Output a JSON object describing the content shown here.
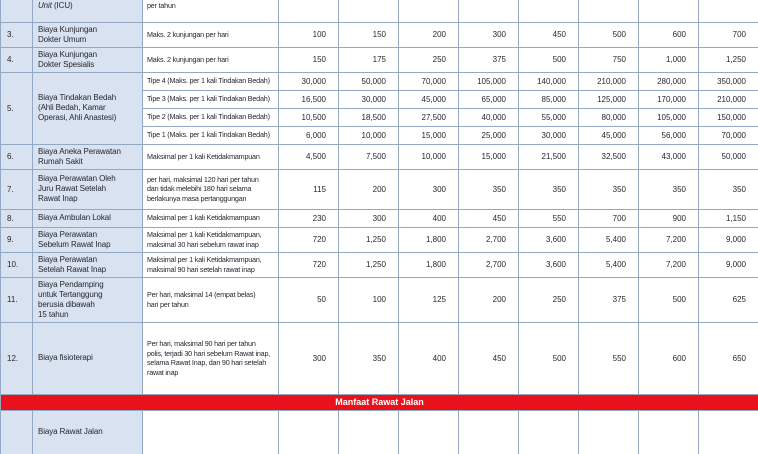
{
  "colors": {
    "row_label_bg": "#d8e2f0",
    "banner_bg": "#e8111c",
    "banner_text": "#ffffff",
    "border": "#94a9c1",
    "text": "#26272e"
  },
  "table": {
    "top_partial": {
      "name_italic": "Unit",
      "name_rest": "(ICU)",
      "desc": "per tahun"
    },
    "rows": [
      {
        "no": "3.",
        "name": "Biaya Kunjungan\nDokter Umum",
        "desc": "Maks. 2 kunjungan per hari",
        "values": [
          "100",
          "150",
          "200",
          "300",
          "450",
          "500",
          "600",
          "700"
        ]
      },
      {
        "no": "4.",
        "name": "Biaya Kunjungan\nDokter Spesialis",
        "desc": "Maks. 2 kunjungan per hari",
        "values": [
          "150",
          "175",
          "250",
          "375",
          "500",
          "750",
          "1,000",
          "1,250"
        ]
      },
      {
        "no": "5.",
        "name": "Biaya Tindakan Bedah\n(Ahli Bedah, Kamar\nOperasi, Ahli Anastesi)",
        "group": [
          {
            "desc": "Tipe 4 (Maks. per 1 kali Tindakan Bedah)",
            "values": [
              "30,000",
              "50,000",
              "70,000",
              "105,000",
              "140,000",
              "210,000",
              "280,000",
              "350,000"
            ]
          },
          {
            "desc": "Tipe 3 (Maks. per 1 kali Tindakan Bedah)",
            "values": [
              "16,500",
              "30,000",
              "45,000",
              "65,000",
              "85,000",
              "125,000",
              "170,000",
              "210,000"
            ]
          },
          {
            "desc": "Tipe 2 (Maks. per 1 kali Tindakan Bedah)",
            "values": [
              "10,500",
              "18,500",
              "27,500",
              "40,000",
              "55,000",
              "80,000",
              "105,000",
              "150,000"
            ]
          },
          {
            "desc": "Tipe 1 (Maks. per 1 kali Tindakan Bedah)",
            "values": [
              "6,000",
              "10,000",
              "15,000",
              "25,000",
              "30,000",
              "45,000",
              "56,000",
              "70,000"
            ]
          }
        ]
      },
      {
        "no": "6.",
        "name": "Biaya Aneka Perawatan\nRumah Sakit",
        "desc": "Maksimal per 1 kali Ketidakmampuan",
        "values": [
          "4,500",
          "7,500",
          "10,000",
          "15,000",
          "21,500",
          "32,500",
          "43,000",
          "50,000"
        ]
      },
      {
        "no": "7.",
        "name": "Biaya Perawatan Oleh\nJuru Rawat Setelah\nRawat Inap",
        "desc": "per hari, maksimal 120 hari per tahun\ndan tidak melebihi 180 hari selama\nberlakunya masa pertanggungan",
        "values": [
          "115",
          "200",
          "300",
          "350",
          "350",
          "350",
          "350",
          "350"
        ]
      },
      {
        "no": "8.",
        "name": "Biaya Ambulan Lokal",
        "desc": "Maksimal per 1 kali Ketidakmampuan",
        "values": [
          "230",
          "300",
          "400",
          "450",
          "550",
          "700",
          "900",
          "1,150"
        ]
      },
      {
        "no": "9.",
        "name": "Biaya Perawatan\nSebelum Rawat Inap",
        "desc": "Maksimal per 1 kali Ketidakmampuan,\nmaksimal 30 hari sebelum rawat inap",
        "values": [
          "720",
          "1,250",
          "1,800",
          "2,700",
          "3,600",
          "5,400",
          "7,200",
          "9,000"
        ]
      },
      {
        "no": "10.",
        "name": "Biaya Perawatan\nSetelah Rawat Inap",
        "desc": "Maksimal per 1 kali Ketidakmampuan,\nmaksimal 90 hari setelah rawat inap",
        "values": [
          "720",
          "1,250",
          "1,800",
          "2,700",
          "3,600",
          "5,400",
          "7,200",
          "9,000"
        ]
      },
      {
        "no": "11.",
        "name": "Biaya Pendamping\nuntuk Tertanggung\nberusia dibawah\n15 tahun",
        "desc": "Per hari, maksimal 14 (empat belas)\nhari per tahun",
        "values": [
          "50",
          "100",
          "125",
          "200",
          "250",
          "375",
          "500",
          "625"
        ]
      },
      {
        "no": "12.",
        "name": "Biaya fisioterapi",
        "desc": "Per hari, maksimal 90 hari per tahun\npolis, terjadi 30 hari sebelum Rawat inap,\nselama Rawat Inap, dan 90 hari setelah\nrawat inap",
        "values": [
          "300",
          "350",
          "400",
          "450",
          "500",
          "550",
          "600",
          "650"
        ]
      }
    ],
    "section_banner": "Manfaat Rawat Jalan",
    "bottom_partial": {
      "name": "Biaya Rawat Jalan"
    }
  }
}
